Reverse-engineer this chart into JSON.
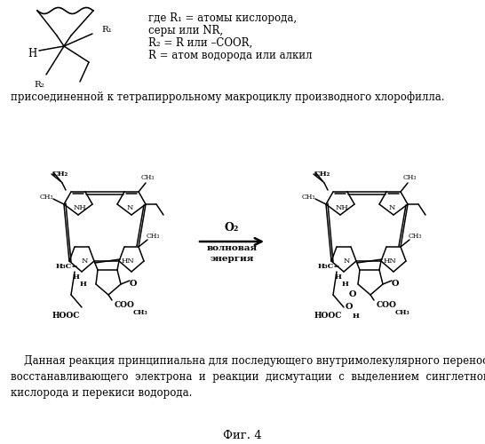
{
  "bg_color": "#ffffff",
  "fig_width": 5.46,
  "fig_height": 5.0,
  "dpi": 100,
  "top_text_lines": [
    "где R₁ = атомы кислорода,",
    "серы или NR,",
    "R₂ = R или –COOR,",
    "R = атом водорода или алкил"
  ],
  "mid_text": "присоединенной к тетрапиррольному макроциклу производного хлорофилла.",
  "arrow_label_top": "O₂",
  "arrow_label_bot1": "волновая",
  "arrow_label_bot2": "энергия",
  "bottom_texts": [
    "    Данная реакция принципиальна для последующего внутримолекулярного переноса",
    "восстанавливающего  электрона  и  реакции  дисмутации  с  выделением  синглетного",
    "кислорода и перекиси водорода."
  ],
  "caption": "Фиг. 4",
  "fs": 8.5,
  "fs_caption": 9.5,
  "fs_chem": 6.0,
  "fs_chem_bold": 6.5
}
